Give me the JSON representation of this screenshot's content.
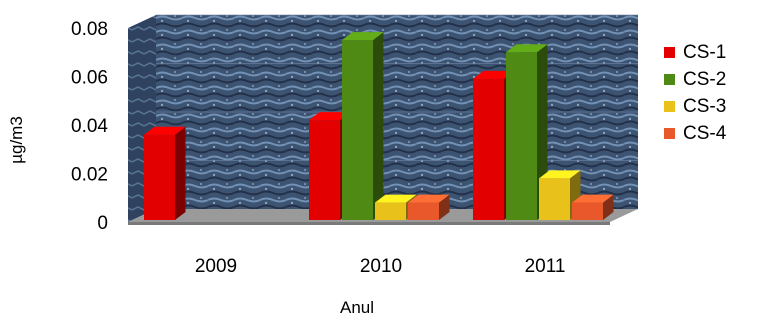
{
  "chart_data": {
    "type": "bar",
    "categories": [
      "2009",
      "2010",
      "2011"
    ],
    "series": [
      {
        "name": "CS-1",
        "values": [
          0.036,
          0.042,
          0.059
        ],
        "color": "#e30000"
      },
      {
        "name": "CS-2",
        "values": [
          null,
          0.075,
          0.07
        ],
        "color": "#4f8a14"
      },
      {
        "name": "CS-3",
        "values": [
          null,
          0.008,
          0.018
        ],
        "color": "#e8c21a"
      },
      {
        "name": "CS-4",
        "values": [
          null,
          0.008,
          0.008
        ],
        "color": "#e8582a"
      }
    ],
    "xlabel": "Anul",
    "ylabel": "µg/m3",
    "ylim": [
      0,
      0.08
    ],
    "yticks": [
      "0",
      "0.02",
      "0.04",
      "0.06",
      "0.08"
    ],
    "legend_position": "right",
    "three_d": true,
    "background": "textured blue"
  }
}
